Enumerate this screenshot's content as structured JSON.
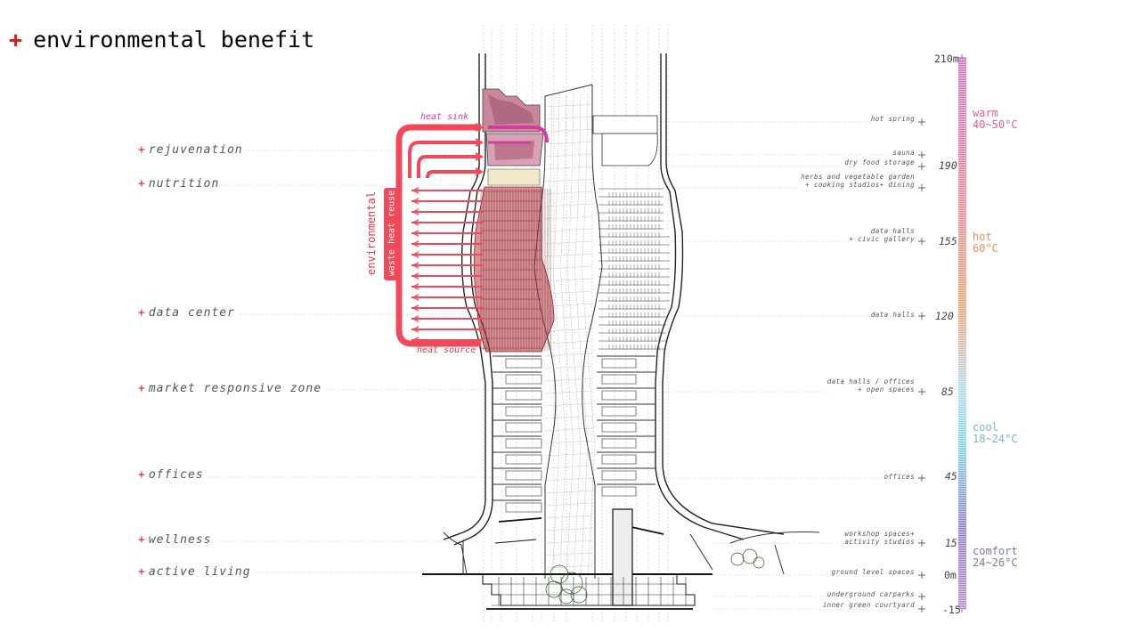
{
  "title": {
    "prefix": "+",
    "text": "environmental benefit"
  },
  "zones": [
    {
      "label": "rejuvenation"
    },
    {
      "label": "nutrition"
    },
    {
      "label": "data center"
    },
    {
      "label": "market responsive zone"
    },
    {
      "label": "offices"
    },
    {
      "label": "wellness"
    },
    {
      "label": "active living"
    }
  ],
  "program_labels": [
    {
      "line1": "hot spring",
      "line2": ""
    },
    {
      "line1": "sauna",
      "line2": ""
    },
    {
      "line1": "dry food storage",
      "line2": ""
    },
    {
      "line1": "herbs and vegetable garden",
      "line2": "+ cooking studios+ dining"
    },
    {
      "line1": "data halls",
      "line2": "+ civic gallery"
    },
    {
      "line1": "data halls",
      "line2": ""
    },
    {
      "line1": "data halls / offices",
      "line2": "+ open spaces"
    },
    {
      "line1": "offices",
      "line2": ""
    },
    {
      "line1": "workshop spaces+",
      "line2": "activity studios"
    },
    {
      "line1": "ground level spaces",
      "line2": ""
    },
    {
      "line1": "underground carparks",
      "line2": ""
    },
    {
      "line1": "inner green courtyard",
      "line2": ""
    }
  ],
  "levels": [
    "210m",
    "190",
    "155",
    "120",
    "85",
    "45",
    "15",
    "0m",
    "-15"
  ],
  "temperature_zones": [
    {
      "name": "warm",
      "range": "40~50°C",
      "color": "#d9629a"
    },
    {
      "name": "hot",
      "range": "60°C",
      "color": "#e8915c"
    },
    {
      "name": "cool",
      "range": "18~24°C",
      "color": "#7fb3c9"
    },
    {
      "name": "comfort",
      "range": "24~26°C",
      "color": "#8c72b0"
    }
  ],
  "heat_loop": {
    "main_label": "environmental",
    "sub_label": "waste heat reuse",
    "sink_label": "heat sink",
    "source_label": "heat source",
    "color": "#f04a5a",
    "sink_color": "#d63aa0"
  }
}
